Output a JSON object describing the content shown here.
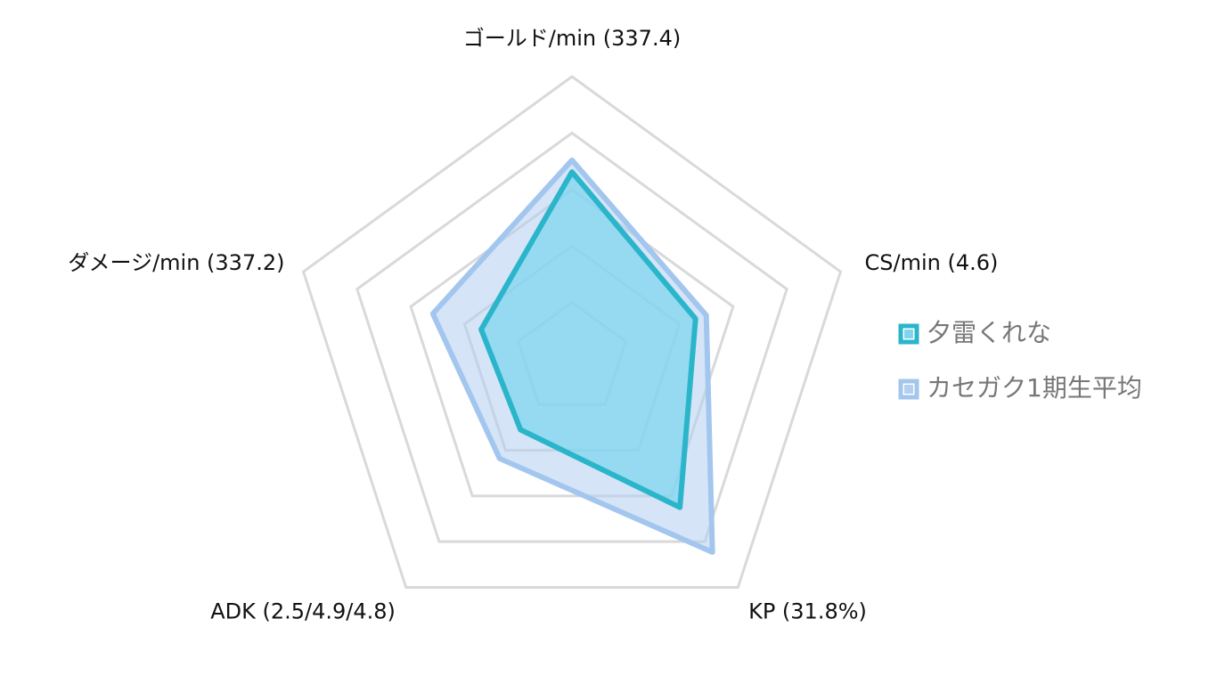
{
  "chart_data": {
    "type": "radar",
    "axes": [
      "ゴールド/min (337.4)",
      "CS/min (4.6)",
      "KP (31.8%)",
      "ADK (2.5/4.9/4.8)",
      "ダメージ/min (337.2)"
    ],
    "rlim": [
      0,
      5
    ],
    "rticks": [
      1,
      2,
      3,
      4,
      5
    ],
    "grid": true,
    "legend": "right",
    "series": [
      {
        "name": "夕雷くれな",
        "color": "#2bb5cb",
        "fill": "#7fd5ee",
        "values": [
          3.31,
          2.3,
          3.25,
          1.55,
          1.69
        ]
      },
      {
        "name": "カセガク1期生平均",
        "color": "#a3c6ee",
        "fill": "#b3d0f0",
        "values": [
          3.52,
          2.5,
          4.23,
          2.18,
          2.59
        ]
      }
    ]
  }
}
